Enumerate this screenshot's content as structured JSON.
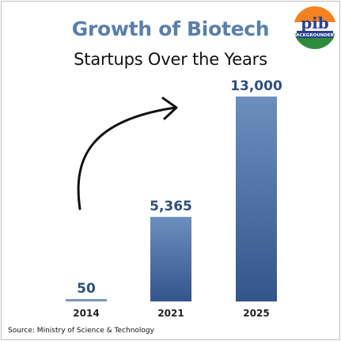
{
  "header": {
    "title": "Growth of Biotech",
    "subtitle": "Startups Over the Years"
  },
  "logo": {
    "text": "pib",
    "subtext": "BACKGROUNDERS",
    "colors": [
      "#f58220",
      "#ffffff",
      "#2e8b3d"
    ],
    "icon": "pib-backgrounders-logo"
  },
  "footer": {
    "source": "Source: Ministry of Science & Technology"
  },
  "colors": {
    "title": "#5b7fa8",
    "subtitle": "#111111",
    "bar_top": "#6c8fbf",
    "bar_bottom": "#33558a",
    "label": "#2f4f7a",
    "arrow": "#111111",
    "axis": "#7d97bb"
  },
  "chart_data": {
    "type": "bar",
    "categories": [
      "2014",
      "2021",
      "2025"
    ],
    "values": [
      50,
      5365,
      13000
    ],
    "value_labels": [
      "50",
      "5,365",
      "13,000"
    ],
    "ylim": [
      0,
      13000
    ],
    "grid": false,
    "annotations": [
      "upward-curved-arrow"
    ]
  }
}
